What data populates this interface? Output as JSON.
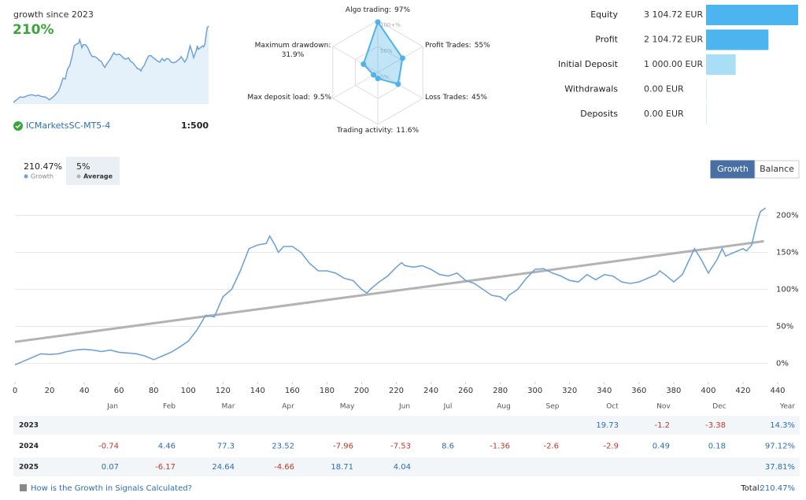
{
  "summary": {
    "label": "growth since 2023",
    "value": "210%",
    "account": "ICMarketsSC-MT5-4",
    "leverage": "1:500"
  },
  "chart_data": [
    {
      "type": "radar",
      "categories": [
        "Algo trading:",
        "Profit Trades:",
        "Loss Trades:",
        "Trading activity:",
        "Max deposit load:",
        "Maximum drawdown:"
      ],
      "values": [
        97,
        55,
        45,
        11.6,
        9.5,
        31.9
      ],
      "value_labels": [
        "97%",
        "55%",
        "45%",
        "11.6%",
        "9.5%",
        "31.9%"
      ],
      "color": "#4fb3e8",
      "rticks": [
        {
          "value": 100,
          "label": "100+%"
        },
        {
          "value": 50,
          "label": "50%"
        },
        {
          "value": 0,
          "label": "0%"
        }
      ]
    },
    {
      "type": "bar",
      "orientation": "horizontal",
      "categories": [
        "Equity",
        "Profit",
        "Initial Deposit",
        "Withdrawals",
        "Deposits"
      ],
      "values": [
        3104.72,
        2104.72,
        1000,
        0,
        0
      ],
      "value_labels": [
        "3 104.72 EUR",
        "2 104.72 EUR",
        "1 000.00 EUR",
        "0.00 EUR",
        "0.00 EUR"
      ],
      "colors": [
        "#4cb5ef",
        "#4cb5ef",
        "#a9def7",
        "#4cb5ef",
        "#4cb5ef"
      ]
    },
    {
      "type": "line",
      "buttons": [
        "Growth",
        "Balance"
      ],
      "series": [
        {
          "name": "Growth",
          "legend_value": "210.47%",
          "color": "#6fa3d8",
          "x": [
            0,
            5,
            10,
            15,
            20,
            25,
            30,
            35,
            40,
            45,
            50,
            55,
            60,
            65,
            70,
            75,
            80,
            85,
            90,
            95,
            100,
            105,
            110,
            115,
            120,
            125,
            130,
            135,
            140,
            145,
            147,
            150,
            152,
            155,
            160,
            165,
            170,
            175,
            180,
            185,
            190,
            195,
            200,
            203,
            205,
            210,
            215,
            220,
            223,
            225,
            230,
            235,
            240,
            245,
            250,
            255,
            260,
            265,
            270,
            275,
            280,
            283,
            285,
            290,
            295,
            300,
            305,
            310,
            315,
            320,
            325,
            330,
            335,
            340,
            345,
            350,
            355,
            360,
            365,
            370,
            372,
            375,
            380,
            385,
            388,
            392,
            396,
            400,
            405,
            408,
            410,
            415,
            420,
            422,
            425,
            428,
            430,
            433
          ],
          "values": [
            -2,
            3,
            8,
            13,
            12,
            13,
            16,
            18,
            19,
            18,
            16,
            18,
            15,
            14,
            13,
            10,
            5,
            10,
            15,
            22,
            30,
            45,
            65,
            63,
            90,
            100,
            125,
            155,
            160,
            162,
            172,
            160,
            150,
            158,
            158,
            150,
            135,
            125,
            125,
            122,
            115,
            112,
            100,
            95,
            100,
            110,
            118,
            130,
            136,
            132,
            130,
            132,
            127,
            120,
            118,
            122,
            112,
            108,
            100,
            92,
            90,
            85,
            92,
            100,
            115,
            127,
            128,
            122,
            118,
            112,
            110,
            120,
            113,
            120,
            118,
            110,
            108,
            110,
            115,
            120,
            125,
            120,
            110,
            120,
            135,
            155,
            140,
            122,
            140,
            155,
            145,
            150,
            155,
            152,
            160,
            190,
            205,
            210
          ]
        },
        {
          "name": "Average",
          "legend_value": "5%",
          "color": "#b3b3b3",
          "x": [
            0,
            432
          ],
          "values": [
            29,
            165
          ]
        }
      ],
      "xlim": [
        0,
        440
      ],
      "xticks": [
        0,
        20,
        40,
        60,
        80,
        100,
        120,
        140,
        160,
        180,
        200,
        220,
        240,
        260,
        280,
        300,
        320,
        340,
        360,
        380,
        400,
        420,
        440
      ],
      "ylim": [
        -25,
        225
      ],
      "yticks": [
        {
          "value": 0,
          "label": "0%"
        },
        {
          "value": 50,
          "label": "50%"
        },
        {
          "value": 100,
          "label": "100%"
        },
        {
          "value": 150,
          "label": "150%"
        },
        {
          "value": 200,
          "label": "200%"
        }
      ],
      "grid": true
    }
  ],
  "table": {
    "columns": [
      "Jan",
      "Feb",
      "Mar",
      "Apr",
      "May",
      "Jun",
      "Jul",
      "Aug",
      "Sep",
      "Oct",
      "Nov",
      "Dec",
      "Year"
    ],
    "rows": [
      {
        "year": "2023",
        "values": [
          null,
          null,
          null,
          null,
          null,
          null,
          null,
          null,
          null,
          19.73,
          -1.2,
          -3.38
        ],
        "total": "14.3%"
      },
      {
        "year": "2024",
        "values": [
          -0.74,
          4.46,
          77.3,
          23.52,
          -7.96,
          -7.53,
          8.6,
          -1.36,
          -2.6,
          -2.9,
          0.49,
          0.18
        ],
        "total": "97.12%"
      },
      {
        "year": "2025",
        "values": [
          0.07,
          -6.17,
          24.64,
          -4.66,
          18.71,
          4.04,
          null,
          null,
          null,
          null,
          null,
          null
        ],
        "total": "37.81%"
      }
    ]
  },
  "footer": {
    "link": "How is the Growth in Signals Calculated?",
    "total_label": "Total:",
    "total_value": "210.47%"
  }
}
